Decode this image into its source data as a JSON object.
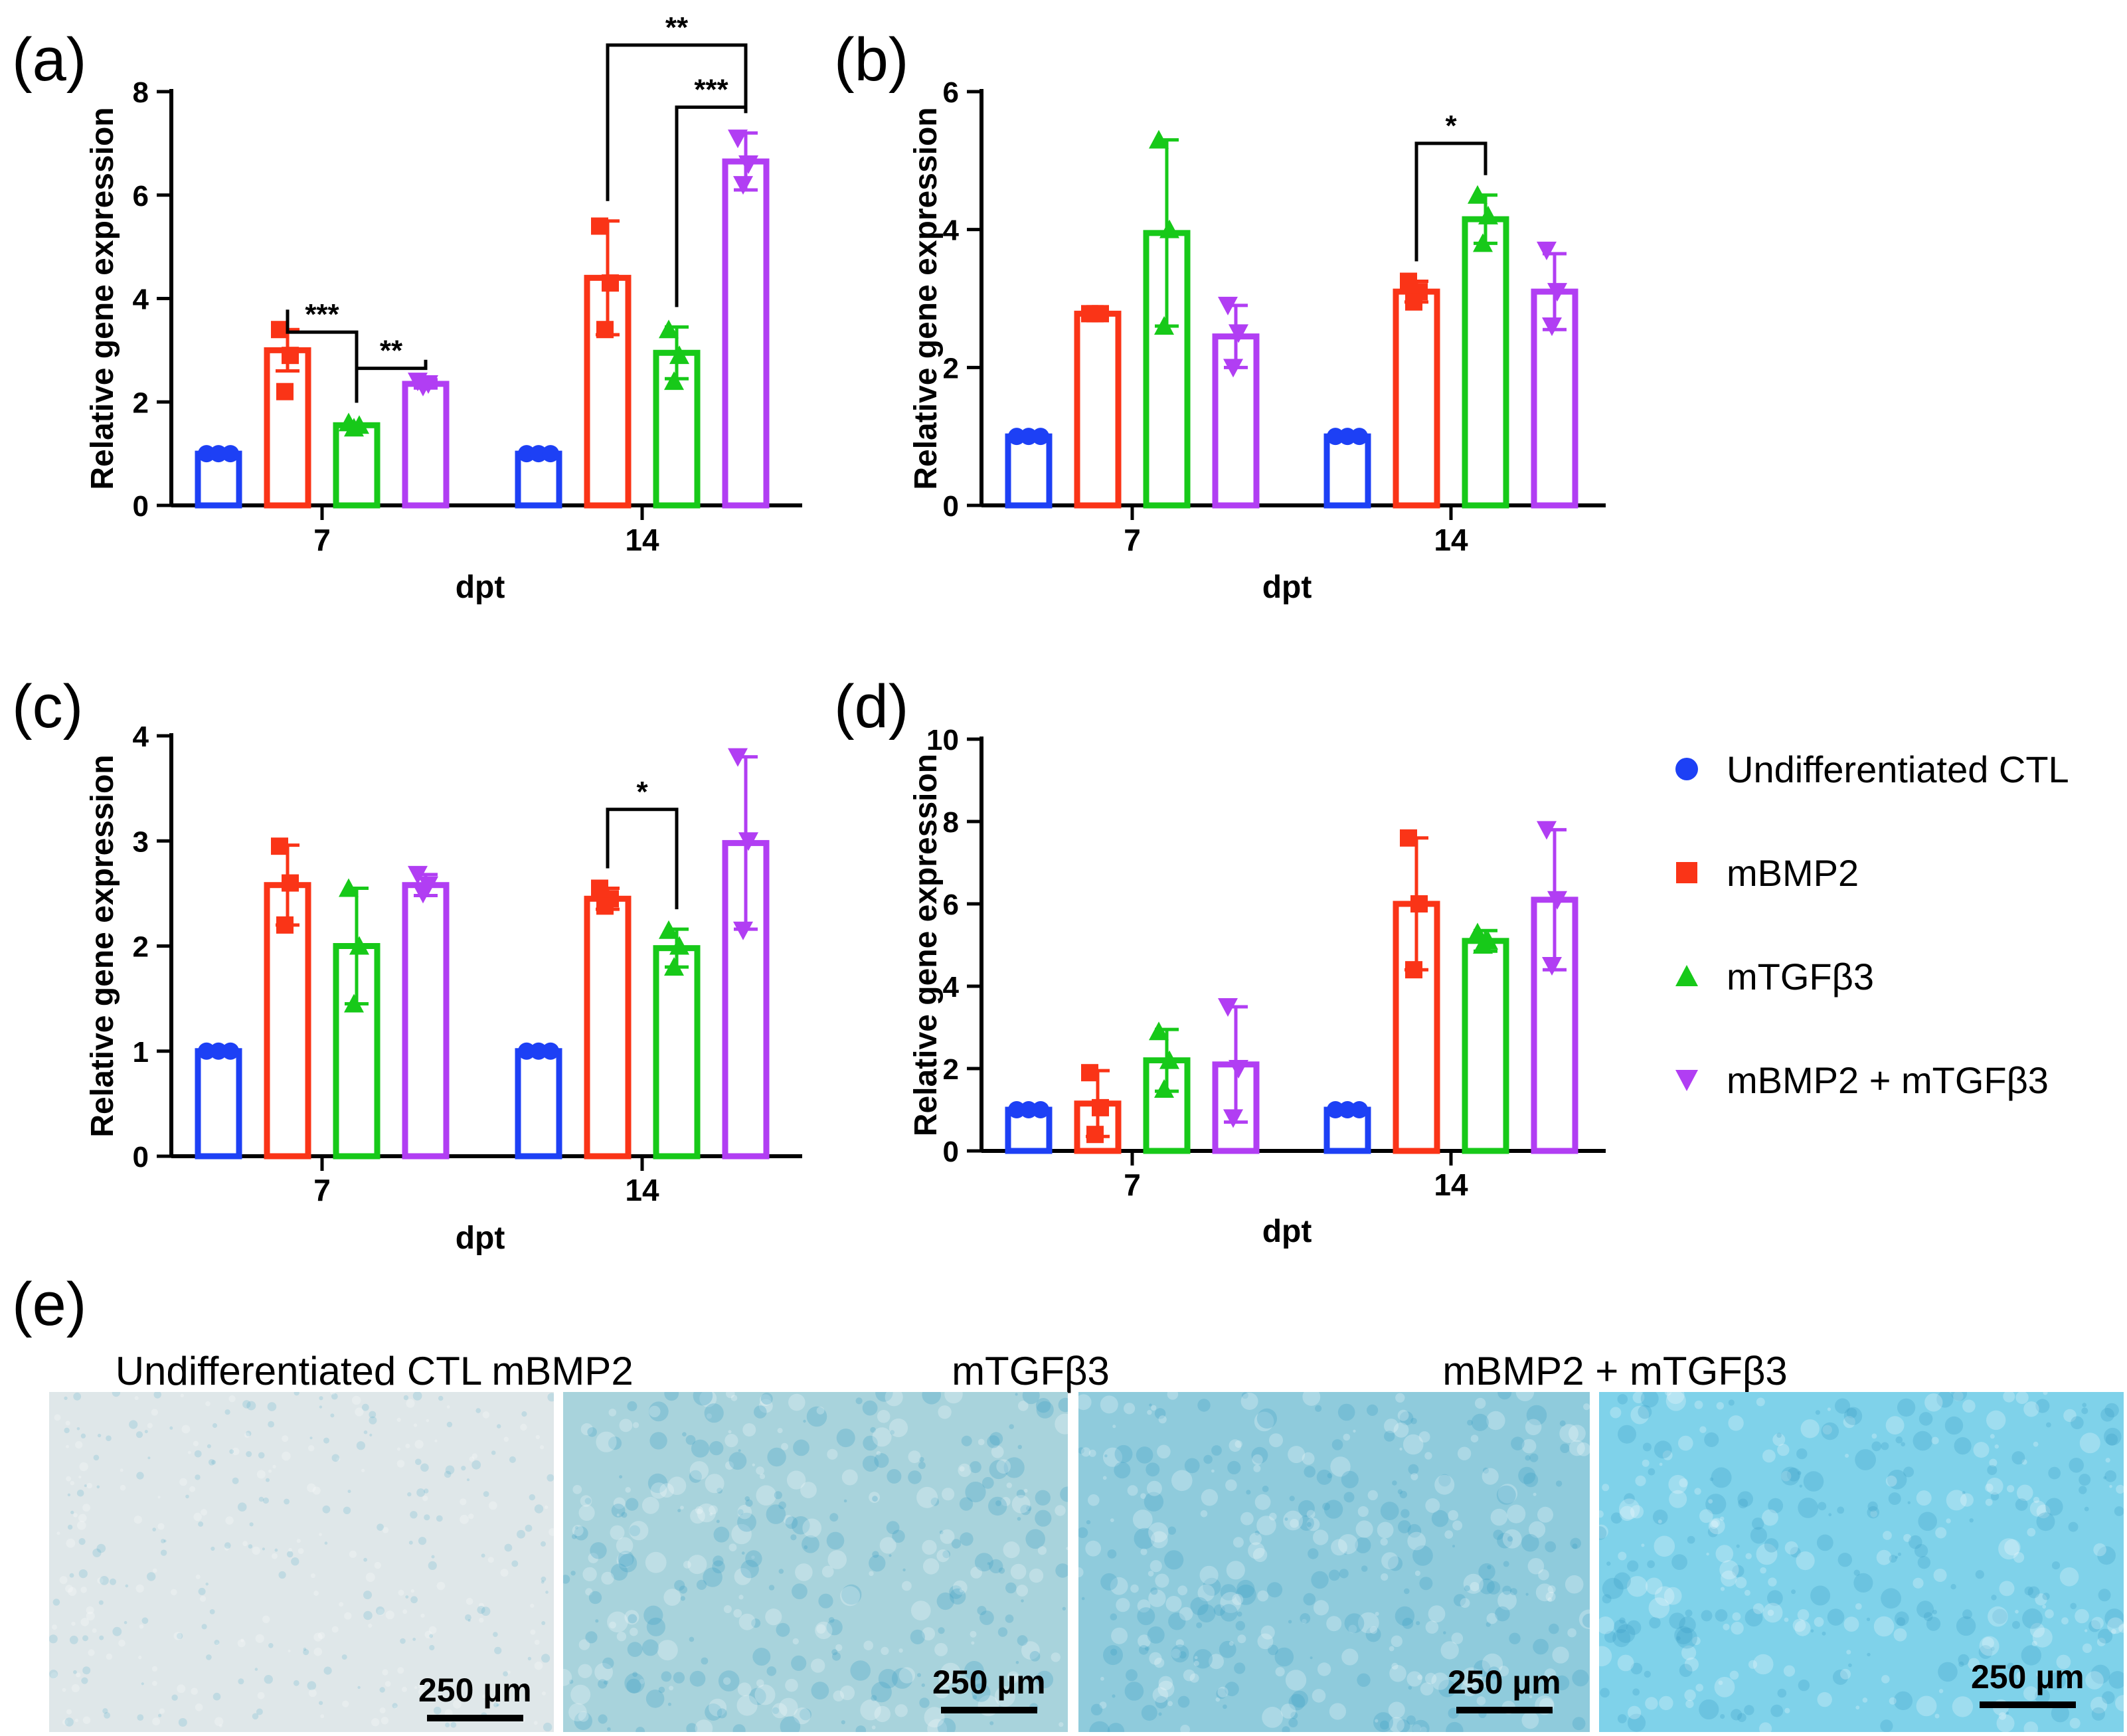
{
  "panel_labels": [
    "(a)",
    "(b)",
    "(c)",
    "(d)",
    "(e)"
  ],
  "legend": [
    {
      "label": "Undifferentiated CTL",
      "color": "#1d40f5",
      "marker": "circle"
    },
    {
      "label": "mBMP2",
      "color": "#fa3417",
      "marker": "square"
    },
    {
      "label": "mTGFβ3",
      "color": "#17c919",
      "marker": "triangle-up"
    },
    {
      "label": "mBMP2 + mTGFβ3",
      "color": "#b13ef3",
      "marker": "triangle-down"
    }
  ],
  "chart_data": [
    {
      "panel": "(a)",
      "type": "bar",
      "xlabel": "dpt",
      "ylabel": "Relative gene expression",
      "ylim": [
        0,
        8
      ],
      "yticks": [
        "0",
        "2",
        "4",
        "6",
        "8"
      ],
      "categories": [
        "7",
        "14"
      ],
      "series": [
        {
          "name": "Undifferentiated CTL",
          "values": [
            1.0,
            1.0
          ],
          "err": [
            0.02,
            0.02
          ],
          "points": [
            [
              1.0,
              1.0,
              1.0
            ],
            [
              1.0,
              1.0,
              1.0
            ]
          ]
        },
        {
          "name": "mBMP2",
          "values": [
            3.0,
            4.4
          ],
          "err": [
            0.4,
            1.1
          ],
          "points": [
            [
              3.4,
              2.9,
              2.2
            ],
            [
              5.4,
              4.3,
              3.4
            ]
          ]
        },
        {
          "name": "mTGFβ3",
          "values": [
            1.55,
            2.95
          ],
          "err": [
            0.05,
            0.5
          ],
          "points": [
            [
              1.6,
              1.55,
              1.5
            ],
            [
              3.4,
              2.9,
              2.4
            ]
          ]
        },
        {
          "name": "mBMP2 + mTGFβ3",
          "values": [
            2.35,
            6.65
          ],
          "err": [
            0.08,
            0.55
          ],
          "points": [
            [
              2.4,
              2.35,
              2.3
            ],
            [
              7.1,
              6.6,
              6.2
            ]
          ]
        }
      ],
      "annotations": [
        {
          "text": "***",
          "from": [
            0,
            1
          ],
          "to": [
            0,
            2
          ],
          "level": 3.35
        },
        {
          "text": "**",
          "from": [
            0,
            2
          ],
          "to": [
            0,
            3
          ],
          "level": 2.65
        },
        {
          "text": "**",
          "from": [
            1,
            1
          ],
          "to": [
            1,
            3
          ],
          "level": 8.9
        },
        {
          "text": "***",
          "from": [
            1,
            2
          ],
          "to": [
            1,
            3
          ],
          "level": 7.7
        }
      ]
    },
    {
      "panel": "(b)",
      "type": "bar",
      "xlabel": "dpt",
      "ylabel": "Relative gene expression",
      "ylim": [
        0,
        6
      ],
      "yticks": [
        "0",
        "2",
        "4",
        "6"
      ],
      "categories": [
        "7",
        "14"
      ],
      "series": [
        {
          "name": "Undifferentiated CTL",
          "values": [
            1.0,
            1.0
          ],
          "err": [
            0.02,
            0.02
          ],
          "points": [
            [
              1.0,
              1.0,
              1.0
            ],
            [
              1.0,
              1.0,
              1.0
            ]
          ]
        },
        {
          "name": "mBMP2",
          "values": [
            2.78,
            3.1
          ],
          "err": [
            0.02,
            0.15
          ],
          "points": [
            [
              2.78,
              2.78,
              2.78
            ],
            [
              3.25,
              3.1,
              2.95
            ]
          ]
        },
        {
          "name": "mTGFβ3",
          "values": [
            3.95,
            4.15
          ],
          "err": [
            1.35,
            0.35
          ],
          "points": [
            [
              5.3,
              4.0,
              2.6
            ],
            [
              4.5,
              4.2,
              3.8
            ]
          ]
        },
        {
          "name": "mBMP2 + mTGFβ3",
          "values": [
            2.45,
            3.1
          ],
          "err": [
            0.45,
            0.55
          ],
          "points": [
            [
              2.9,
              2.5,
              2.0
            ],
            [
              3.7,
              3.1,
              2.6
            ]
          ]
        }
      ],
      "annotations": [
        {
          "text": "*",
          "from": [
            1,
            1
          ],
          "to": [
            1,
            2
          ],
          "level": 5.25
        }
      ]
    },
    {
      "panel": "(c)",
      "type": "bar",
      "xlabel": "dpt",
      "ylabel": "Relative gene expression",
      "ylim": [
        0,
        4
      ],
      "yticks": [
        "0",
        "1",
        "2",
        "3",
        "4"
      ],
      "categories": [
        "7",
        "14"
      ],
      "series": [
        {
          "name": "Undifferentiated CTL",
          "values": [
            1.0,
            1.0
          ],
          "err": [
            0.02,
            0.02
          ],
          "points": [
            [
              1.0,
              1.0,
              1.0
            ],
            [
              1.0,
              1.0,
              1.0
            ]
          ]
        },
        {
          "name": "mBMP2",
          "values": [
            2.58,
            2.45
          ],
          "err": [
            0.38,
            0.1
          ],
          "points": [
            [
              2.95,
              2.6,
              2.2
            ],
            [
              2.55,
              2.45,
              2.38
            ]
          ]
        },
        {
          "name": "mTGFβ3",
          "values": [
            2.0,
            1.98
          ],
          "err": [
            0.55,
            0.18
          ],
          "points": [
            [
              2.55,
              2.0,
              1.45
            ],
            [
              2.15,
              2.0,
              1.8
            ]
          ]
        },
        {
          "name": "mBMP2 + mTGFβ3",
          "values": [
            2.58,
            2.98
          ],
          "err": [
            0.1,
            0.82
          ],
          "points": [
            [
              2.68,
              2.58,
              2.5
            ],
            [
              3.8,
              3.0,
              2.15
            ]
          ]
        }
      ],
      "annotations": [
        {
          "text": "*",
          "from": [
            1,
            1
          ],
          "to": [
            1,
            2
          ],
          "level": 3.3
        }
      ]
    },
    {
      "panel": "(d)",
      "type": "bar",
      "xlabel": "dpt",
      "ylabel": "Relative gene expression",
      "ylim": [
        0,
        10
      ],
      "yticks": [
        "0",
        "2",
        "4",
        "6",
        "8",
        "10"
      ],
      "categories": [
        "7",
        "14"
      ],
      "series": [
        {
          "name": "Undifferentiated CTL",
          "values": [
            1.0,
            1.0
          ],
          "err": [
            0.02,
            0.02
          ],
          "points": [
            [
              1.0,
              1.0,
              1.0
            ],
            [
              1.0,
              1.0,
              1.0
            ]
          ]
        },
        {
          "name": "mBMP2",
          "values": [
            1.15,
            6.0
          ],
          "err": [
            0.8,
            1.6
          ],
          "points": [
            [
              1.9,
              1.05,
              0.4
            ],
            [
              7.6,
              6.0,
              4.4
            ]
          ]
        },
        {
          "name": "mTGFβ3",
          "values": [
            2.2,
            5.1
          ],
          "err": [
            0.75,
            0.25
          ],
          "points": [
            [
              2.9,
              2.2,
              1.5
            ],
            [
              5.3,
              5.1,
              5.0
            ]
          ]
        },
        {
          "name": "mBMP2 + mTGFβ3",
          "values": [
            2.1,
            6.1
          ],
          "err": [
            1.4,
            1.7
          ],
          "points": [
            [
              3.5,
              2.0,
              0.8
            ],
            [
              7.8,
              6.1,
              4.5
            ]
          ]
        }
      ],
      "annotations": []
    }
  ],
  "micrographs": [
    {
      "title": "Undifferentiated CTL",
      "scale_text": "250 µm",
      "stain": "#dfe7e9"
    },
    {
      "title": "mBMP2",
      "scale_text": "250 µm",
      "stain": "#a8d3dc"
    },
    {
      "title": "mTGFβ3",
      "scale_text": "250 µm",
      "stain": "#8fcbdc"
    },
    {
      "title": "mBMP2 + mTGFβ3",
      "scale_text": "250 µm",
      "stain": "#7fd2ea"
    }
  ]
}
